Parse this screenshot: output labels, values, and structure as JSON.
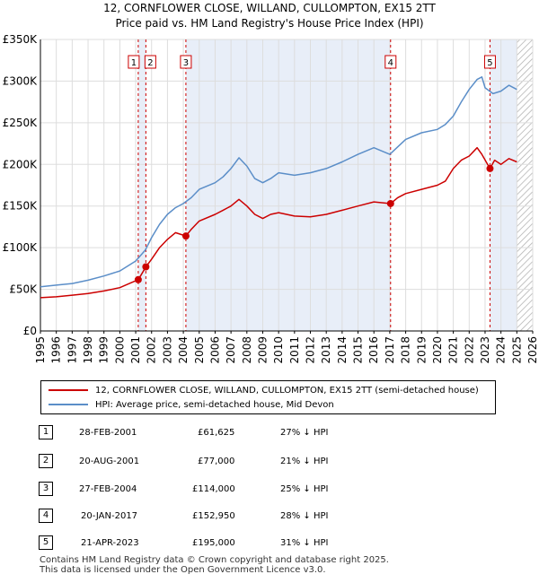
{
  "title": {
    "line1": "12, CORNFLOWER CLOSE, WILLAND, CULLOMPTON, EX15 2TT",
    "line2": "Price paid vs. HM Land Registry's House Price Index (HPI)"
  },
  "colors": {
    "property": "#cc0000",
    "hpi": "#5b8ec8",
    "band": "#e8eef8",
    "hatch": "#b0b0b0"
  },
  "legend": {
    "property_label": "12, CORNFLOWER CLOSE, WILLAND, CULLOMPTON, EX15 2TT (semi-detached house)",
    "hpi_label": "HPI: Average price, semi-detached house, Mid Devon"
  },
  "transactions": [
    {
      "num": "1",
      "date": "28-FEB-2001",
      "price": "£61,625",
      "hpi": "27% ↓ HPI"
    },
    {
      "num": "2",
      "date": "20-AUG-2001",
      "price": "£77,000",
      "hpi": "21% ↓ HPI"
    },
    {
      "num": "3",
      "date": "27-FEB-2004",
      "price": "£114,000",
      "hpi": "25% ↓ HPI"
    },
    {
      "num": "4",
      "date": "20-JAN-2017",
      "price": "£152,950",
      "hpi": "28% ↓ HPI"
    },
    {
      "num": "5",
      "date": "21-APR-2023",
      "price": "£195,000",
      "hpi": "31% ↓ HPI"
    }
  ],
  "footer": {
    "line1": "Contains HM Land Registry data © Crown copyright and database right 2025.",
    "line2": "This data is licensed under the Open Government Licence v3.0."
  },
  "chart_data": {
    "type": "line",
    "title": "Price paid vs. HM Land Registry's House Price Index (HPI)",
    "xlim": [
      1995,
      2026
    ],
    "ylim": [
      0,
      350000
    ],
    "x_ticks": [
      "1995",
      "1996",
      "1997",
      "1998",
      "1999",
      "2000",
      "2001",
      "2002",
      "2003",
      "2004",
      "2005",
      "2006",
      "2007",
      "2008",
      "2009",
      "2010",
      "2011",
      "2012",
      "2013",
      "2014",
      "2015",
      "2016",
      "2017",
      "2018",
      "2019",
      "2020",
      "2021",
      "2022",
      "2023",
      "2024",
      "2025",
      "2026"
    ],
    "y_ticks": [
      {
        "value": 0,
        "label": "£0"
      },
      {
        "value": 50000,
        "label": "£50K"
      },
      {
        "value": 100000,
        "label": "£100K"
      },
      {
        "value": 150000,
        "label": "£150K"
      },
      {
        "value": 200000,
        "label": "£200K"
      },
      {
        "value": 250000,
        "label": "£250K"
      },
      {
        "value": 300000,
        "label": "£300K"
      },
      {
        "value": 350000,
        "label": "£350K"
      }
    ],
    "grid": true,
    "projection_start": 2025.0,
    "series": [
      {
        "name": "12, CORNFLOWER CLOSE, WILLAND, CULLOMPTON, EX15 2TT (semi-detached house)",
        "color": "#cc0000",
        "x": [
          1995,
          1996,
          1997,
          1998,
          1999,
          2000,
          2000.6,
          2001.16,
          2001.3,
          2001.64,
          2002,
          2002.5,
          2003,
          2003.5,
          2004.16,
          2004.5,
          2005,
          2006,
          2006.5,
          2007,
          2007.5,
          2008,
          2008.5,
          2009,
          2009.5,
          2010,
          2011,
          2012,
          2013,
          2014,
          2015,
          2016,
          2017.05,
          2017.5,
          2018,
          2019,
          2020,
          2020.5,
          2021,
          2021.5,
          2022,
          2022.5,
          2022.8,
          2023.31,
          2023.6,
          2024,
          2024.5,
          2025
        ],
        "y": [
          40000,
          41000,
          43000,
          45000,
          48000,
          52000,
          57000,
          61625,
          66000,
          77000,
          86000,
          100000,
          110000,
          118000,
          114000,
          122000,
          132000,
          140000,
          145000,
          150000,
          158000,
          150000,
          140000,
          135000,
          140000,
          142000,
          138000,
          137000,
          140000,
          145000,
          150000,
          155000,
          152950,
          160000,
          165000,
          170000,
          175000,
          180000,
          195000,
          205000,
          210000,
          220000,
          212000,
          195000,
          205000,
          200000,
          207000,
          203000
        ]
      },
      {
        "name": "HPI: Average price, semi-detached house, Mid Devon",
        "color": "#5b8ec8",
        "x": [
          1995,
          1996,
          1997,
          1998,
          1999,
          2000,
          2001,
          2001.6,
          2002,
          2002.5,
          2003,
          2003.5,
          2004,
          2004.5,
          2005,
          2006,
          2006.5,
          2007,
          2007.5,
          2008,
          2008.5,
          2009,
          2009.5,
          2010,
          2011,
          2012,
          2013,
          2014,
          2015,
          2016,
          2017,
          2018,
          2019,
          2020,
          2020.5,
          2021,
          2021.5,
          2022,
          2022.5,
          2022.8,
          2023,
          2023.5,
          2024,
          2024.5,
          2025
        ],
        "y": [
          53000,
          55000,
          57000,
          61000,
          66000,
          72000,
          84000,
          97000,
          112000,
          128000,
          140000,
          148000,
          153000,
          160000,
          170000,
          178000,
          185000,
          195000,
          208000,
          198000,
          183000,
          178000,
          183000,
          190000,
          187000,
          190000,
          195000,
          203000,
          212000,
          220000,
          212000,
          230000,
          238000,
          242000,
          248000,
          258000,
          275000,
          290000,
          302000,
          305000,
          292000,
          285000,
          288000,
          295000,
          290000
        ]
      }
    ],
    "annotations": [
      {
        "label": "1",
        "x": 2001.16,
        "y": 61625
      },
      {
        "label": "2",
        "x": 2001.64,
        "y": 77000
      },
      {
        "label": "3",
        "x": 2004.16,
        "y": 114000
      },
      {
        "label": "4",
        "x": 2017.05,
        "y": 152950
      },
      {
        "label": "5",
        "x": 2023.31,
        "y": 195000
      }
    ]
  }
}
